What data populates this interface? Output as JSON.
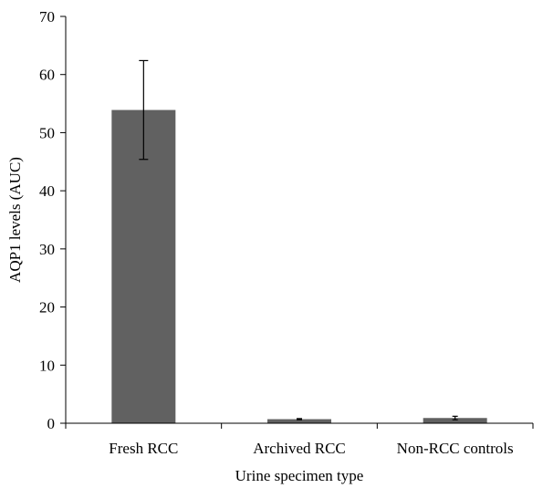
{
  "chart_data": {
    "type": "bar",
    "title": "",
    "xlabel": "Urine specimen type",
    "ylabel": "AQP1 levels (AUC)",
    "categories": [
      "Fresh RCC",
      "Archived RCC",
      "Non-RCC controls"
    ],
    "values": [
      53.9,
      0.7,
      0.9
    ],
    "error_low": [
      45.4,
      0.6,
      0.6
    ],
    "error_high": [
      62.4,
      0.8,
      1.2
    ],
    "ylim": [
      0,
      70
    ],
    "yticks": [
      0,
      10,
      20,
      30,
      40,
      50,
      60,
      70
    ],
    "grid": false,
    "legend": "none",
    "bar_color": "#616161",
    "axis_color": "#000000"
  }
}
